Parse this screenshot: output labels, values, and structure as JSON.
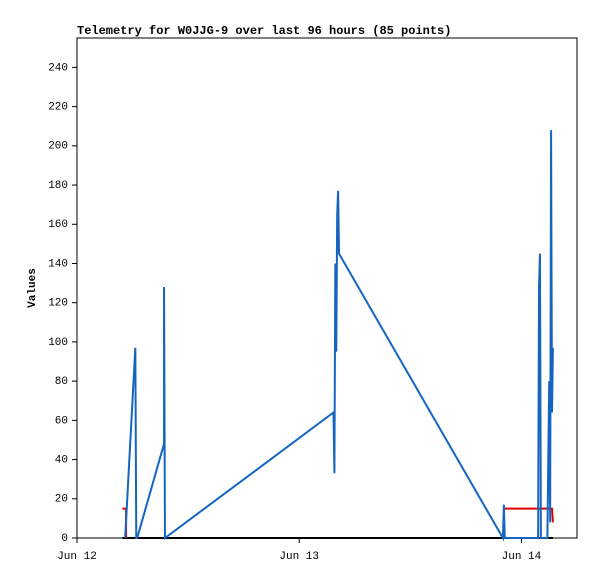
{
  "chart_data": {
    "type": "line",
    "title": "Telemetry for W0JJG-9 over last 96 hours (85 points)",
    "y_label": "Values",
    "xlim": [
      0,
      54
    ],
    "ylim": [
      0,
      255
    ],
    "xticks": [
      {
        "value": 0,
        "label": "Jun 12"
      },
      {
        "value": 24,
        "label": "Jun 13"
      },
      {
        "value": 48,
        "label": "Jun 14"
      }
    ],
    "yticks": [
      0,
      20,
      40,
      60,
      80,
      100,
      120,
      140,
      160,
      180,
      200,
      220,
      240
    ],
    "series": [
      {
        "color": "#000000",
        "x": [
          4.9,
          51.4
        ],
        "values": [
          0,
          0
        ]
      },
      {
        "color": "#e00000",
        "x": [
          4.9,
          5.3,
          5.3,
          25,
          46.1,
          51.3,
          51.4
        ],
        "values": [
          15,
          15,
          0,
          null,
          15,
          15,
          8
        ]
      },
      {
        "color": "#1565c0",
        "x": [
          5.2,
          6.3,
          6.4,
          6.5,
          9.4,
          9.4,
          9.5,
          27.7,
          27.8,
          27.9,
          28.0,
          28.1,
          28.2,
          28.3,
          46.0,
          46.1,
          46.2,
          49.8,
          49.9,
          50.0,
          50.1,
          50.8,
          50.9,
          51.0,
          51.1,
          51.2,
          51.3,
          51.4
        ],
        "values": [
          0,
          97,
          0,
          0,
          48,
          128,
          0,
          64,
          33,
          140,
          95,
          165,
          177,
          145,
          0,
          17,
          0,
          0,
          128,
          145,
          0,
          0,
          40,
          80,
          8,
          208,
          64,
          97
        ]
      }
    ]
  }
}
